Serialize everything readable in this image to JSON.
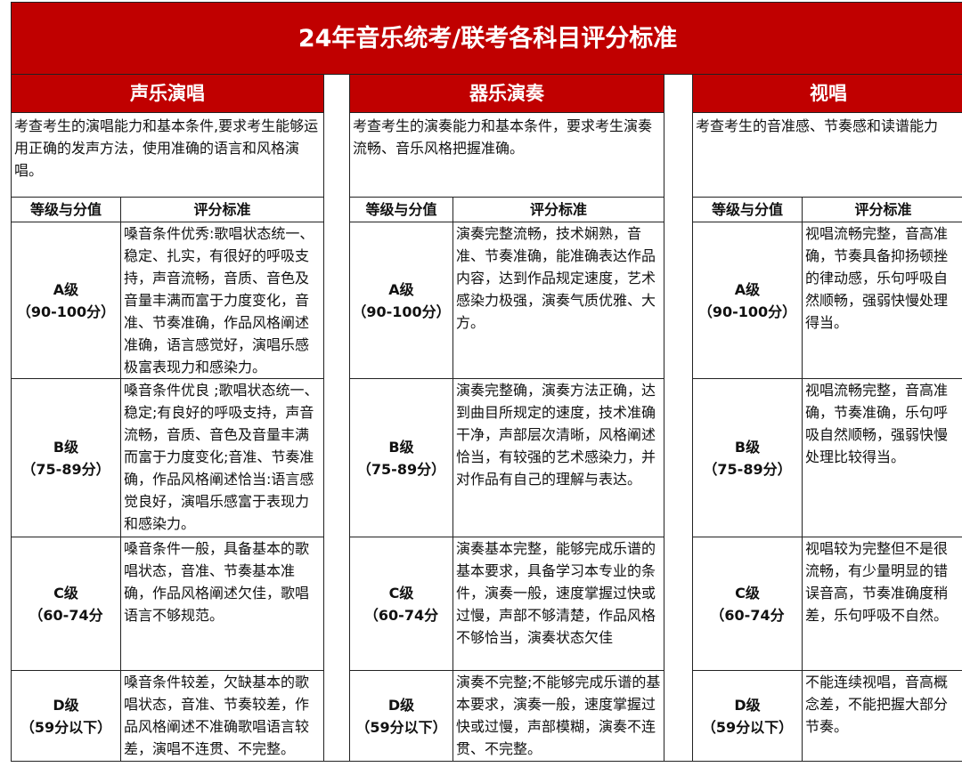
{
  "title": "24年音乐统考/联考各科目评分标准",
  "column_headers": {
    "grade": "等级与分值",
    "criteria": "评分标准"
  },
  "sections": [
    {
      "name": "声乐演唱",
      "description": "考查考生的演唱能力和基本条件,要求考生能够运用正确的发声方法，使用准确的语言和风格演唱。",
      "rows": [
        {
          "grade": "A级",
          "score": "（90-100分）",
          "criteria": "嗓音条件优秀:歌唱状态统一、稳定、扎实，有很好的呼吸支持，声音流畅，音质、音色及音量丰满而富于力度变化，音准、节奏准确，作品风格阐述准确，语言感觉好，演唱乐感极富表现力和感染力。"
        },
        {
          "grade": "B级",
          "score": "（75-89分）",
          "criteria": "嗓音条件优良 ;歌唱状态统一、稳定;有良好的呼吸支持，声音流畅，音质、音色及音量丰满而富于力度变化;音准、节奏准确，作品风格阐述恰当:语言感觉良好，演唱乐感富于表现力和感染力。"
        },
        {
          "grade": "C级",
          "score": "（60-74分",
          "criteria": "嗓音条件一般，具备基本的歌唱状态，音准、节奏基本准确，作品风格阐述欠佳，歌唱语言不够规范。"
        },
        {
          "grade": "D级",
          "score": "（59分以下）",
          "criteria": "嗓音条件较差，欠缺基本的歌唱状态，音准、节奏较差，作品风格阐述不准确歌唱语言较差，演唱不连贯、不完整。"
        }
      ]
    },
    {
      "name": "器乐演奏",
      "description": "考查考生的演奏能力和基本条件，要求考生演奏流畅、音乐风格把握准确。",
      "rows": [
        {
          "grade": "A级",
          "score": "（90-100分）",
          "criteria": "演奏完整流畅，技术娴熟，音准、节奏准确，能准确表达作品内容，达到作品规定速度，艺术感染力极强，演奏气质优雅、大方。"
        },
        {
          "grade": "B级",
          "score": "（75-89分）",
          "criteria": "演奏完整确，演奏方法正确，达到曲目所规定的速度，技术准确干净，声部层次清晰，风格阐述恰当，有较强的艺术感染力，并对作品有自己的理解与表达。"
        },
        {
          "grade": "C级",
          "score": "（60-74分",
          "criteria": "演奏基本完整，能够完成乐谱的基本要求，具备学习本专业的条件，演奏一般，速度掌握过快或过慢，声部不够清楚，作品风格不够恰当，演奏状态欠佳"
        },
        {
          "grade": "D级",
          "score": "（59分以下）",
          "criteria": "演奏不完整;不能够完成乐谱的基本要求，演奏一般，速度掌握过快或过慢，声部模糊，演奏不连贯、不完整。"
        }
      ]
    },
    {
      "name": "视唱",
      "description": "考查考生的音准感、节奏感和读谱能力",
      "rows": [
        {
          "grade": "A级",
          "score": "（90-100分）",
          "criteria": "视唱流畅完整，音高准确，节奏具备抑扬顿挫的律动感，乐句呼吸自然顺畅，强弱快慢处理得当。"
        },
        {
          "grade": "B级",
          "score": "（75-89分）",
          "criteria": "视唱流畅完整，音高准确，节奏准确，乐句呼吸自然顺畅，强弱快慢处理比较得当。"
        },
        {
          "grade": "C级",
          "score": "（60-74分",
          "criteria": "视唱较为完整但不是很流畅，有少量明显的错误音高，节奏准确度稍差，乐句呼吸不自然。"
        },
        {
          "grade": "D级",
          "score": "（59分以下）",
          "criteria": "不能连续视唱，音高概念差，不能把握大部分节奏。"
        }
      ]
    }
  ],
  "colors": {
    "header_red": "#c00000",
    "header_text": "#ffffff"
  }
}
